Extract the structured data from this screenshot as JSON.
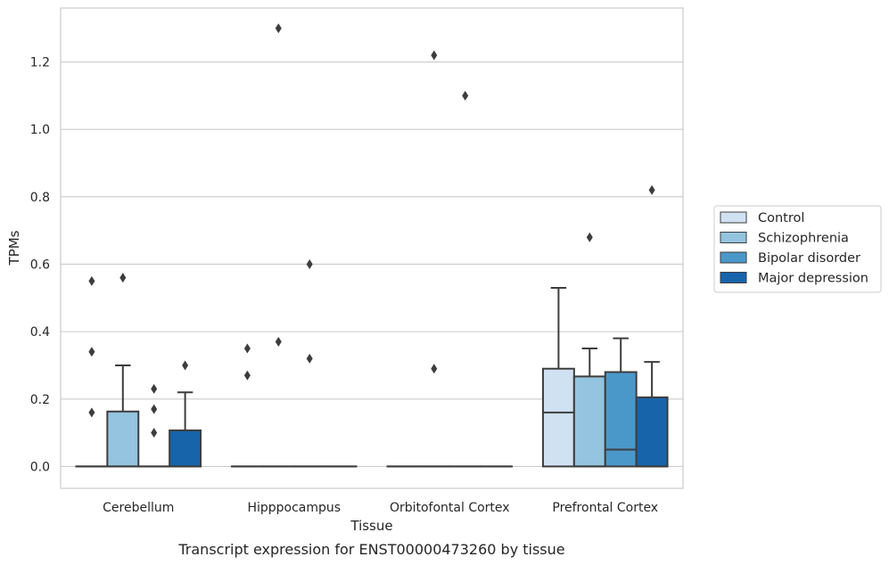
{
  "caption": "Transcript expression for ENST00000473260 by tissue",
  "chart_data": {
    "type": "box",
    "xlabel": "Tissue",
    "ylabel": "TPMs",
    "ylim": [
      -0.065,
      1.36
    ],
    "yticks": [
      0.0,
      0.2,
      0.4,
      0.6,
      0.8,
      1.0,
      1.2
    ],
    "ytick_labels": [
      "0.0",
      "0.2",
      "0.4",
      "0.6",
      "0.8",
      "1.0",
      "1.2"
    ],
    "grid": "horizontal",
    "legend_position": "right",
    "categories": [
      "Cerebellum",
      "Hipppocampus",
      "Orbitofontal Cortex",
      "Prefrontal Cortex"
    ],
    "series": [
      {
        "name": "Control",
        "color": "#d0e1f2",
        "boxes": [
          {
            "q1": 0,
            "median": 0,
            "q3": 0,
            "whisker_low": 0,
            "whisker_high": 0,
            "outliers": [
              0.55,
              0.34,
              0.16
            ]
          },
          {
            "q1": 0,
            "median": 0,
            "q3": 0,
            "whisker_low": 0,
            "whisker_high": 0,
            "outliers": [
              0.35,
              0.27
            ]
          },
          {
            "q1": 0,
            "median": 0,
            "q3": 0,
            "whisker_low": 0,
            "whisker_high": 0,
            "outliers": []
          },
          {
            "q1": 0,
            "median": 0.16,
            "q3": 0.29,
            "whisker_low": 0,
            "whisker_high": 0.53,
            "outliers": []
          }
        ]
      },
      {
        "name": "Schizophrenia",
        "color": "#94c4df",
        "boxes": [
          {
            "q1": 0,
            "median": 0,
            "q3": 0.163,
            "whisker_low": 0,
            "whisker_high": 0.3,
            "outliers": [
              0.56
            ]
          },
          {
            "q1": 0,
            "median": 0,
            "q3": 0,
            "whisker_low": 0,
            "whisker_high": 0,
            "outliers": [
              1.3,
              0.37
            ]
          },
          {
            "q1": 0,
            "median": 0,
            "q3": 0,
            "whisker_low": 0,
            "whisker_high": 0,
            "outliers": [
              1.22,
              0.29
            ]
          },
          {
            "q1": 0,
            "median": 0,
            "q3": 0.267,
            "whisker_low": 0,
            "whisker_high": 0.35,
            "outliers": [
              0.68
            ]
          }
        ]
      },
      {
        "name": "Bipolar disorder",
        "color": "#4a98c9",
        "boxes": [
          {
            "q1": 0,
            "median": 0,
            "q3": 0,
            "whisker_low": 0,
            "whisker_high": 0,
            "outliers": [
              0.23,
              0.17,
              0.1
            ]
          },
          {
            "q1": 0,
            "median": 0,
            "q3": 0,
            "whisker_low": 0,
            "whisker_high": 0,
            "outliers": [
              0.6,
              0.32
            ]
          },
          {
            "q1": 0,
            "median": 0,
            "q3": 0,
            "whisker_low": 0,
            "whisker_high": 0,
            "outliers": [
              1.1
            ]
          },
          {
            "q1": 0,
            "median": 0.05,
            "q3": 0.28,
            "whisker_low": 0,
            "whisker_high": 0.38,
            "outliers": []
          }
        ]
      },
      {
        "name": "Major depression",
        "color": "#1764ab",
        "boxes": [
          {
            "q1": 0,
            "median": 0,
            "q3": 0.107,
            "whisker_low": 0,
            "whisker_high": 0.22,
            "outliers": [
              0.3
            ]
          },
          {
            "q1": 0,
            "median": 0,
            "q3": 0,
            "whisker_low": 0,
            "whisker_high": 0,
            "outliers": []
          },
          {
            "q1": 0,
            "median": 0,
            "q3": 0,
            "whisker_low": 0,
            "whisker_high": 0,
            "outliers": []
          },
          {
            "q1": 0,
            "median": 0,
            "q3": 0.205,
            "whisker_low": 0,
            "whisker_high": 0.31,
            "outliers": [
              0.82
            ]
          }
        ]
      }
    ]
  }
}
